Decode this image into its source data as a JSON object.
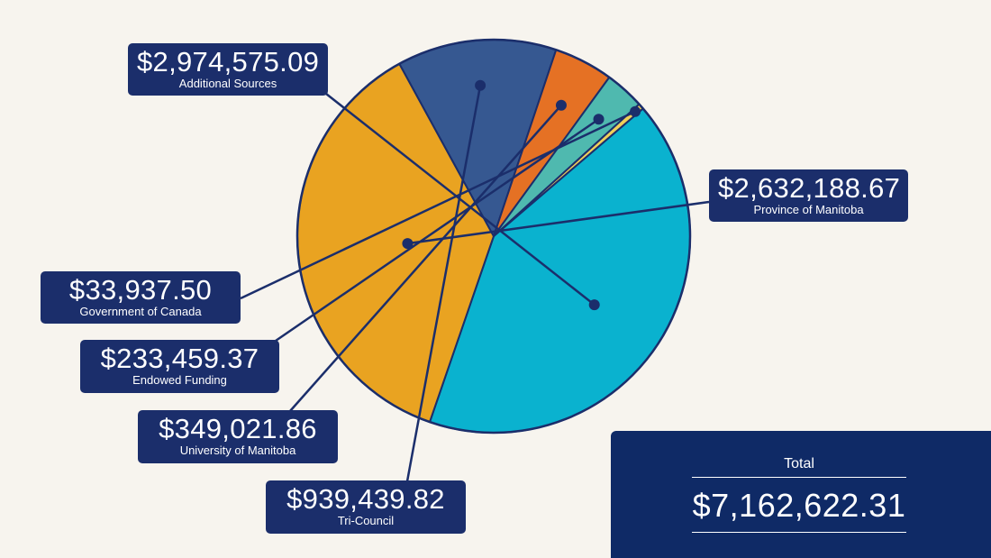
{
  "chart_data": {
    "type": "pie",
    "slices": [
      {
        "label": "Additional Sources",
        "amount": "$2,974,575.09",
        "value": 2974575.09,
        "color": "#0ab2cf"
      },
      {
        "label": "Province of Manitoba",
        "amount": "$2,632,188.67",
        "value": 2632188.67,
        "color": "#e9a321"
      },
      {
        "label": "Tri-Council",
        "amount": "$939,439.82",
        "value": 939439.82,
        "color": "#365891"
      },
      {
        "label": "University of Manitoba",
        "amount": "$349,021.86",
        "value": 349021.86,
        "color": "#e57124"
      },
      {
        "label": "Endowed Funding",
        "amount": "$233,459.37",
        "value": 233459.37,
        "color": "#4fb9af"
      },
      {
        "label": "Government of Canada",
        "amount": "$33,937.50",
        "value": 33937.5,
        "color": "#f0cf5a"
      }
    ]
  },
  "total": {
    "label": "Total",
    "value": "$7,162,622.31"
  },
  "colors": {
    "outline": "#1b2e6b",
    "callout_bg": "#1b2e6b",
    "total_bg": "#0f2a66",
    "background": "#f7f4ee"
  }
}
